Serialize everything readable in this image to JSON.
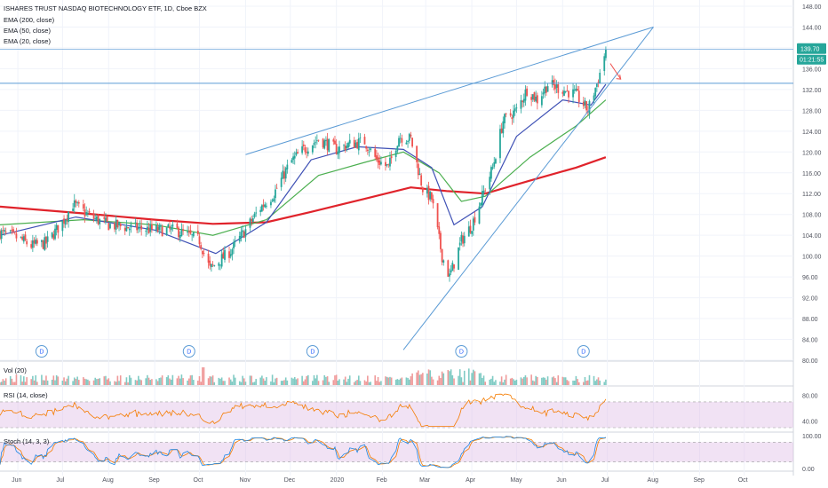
{
  "header": {
    "title": "ISHARES TRUST NASDAQ BIOTECHNOLOGY ETF, 1D, Cboe BZX",
    "indicators": [
      "EMA (200, close)",
      "EMA (50, close)",
      "EMA (20, close)"
    ]
  },
  "price_badge": {
    "value": "139.70",
    "countdown": "01:21:55"
  },
  "panes": {
    "volume": {
      "label": "Vol (20)"
    },
    "rsi": {
      "label": "RSI (14, close)",
      "ticks": [
        "80.00",
        "40.00"
      ]
    },
    "stoch": {
      "label": "Stoch (14, 3, 3)",
      "ticks": [
        "100.00",
        "0.00"
      ]
    }
  },
  "colors": {
    "up": "#26a69a",
    "down": "#ef5350",
    "ema200": "#e0232b",
    "ema50": "#4caf50",
    "ema20": "#3f51b5",
    "trendline": "#5b9bd5",
    "rsi_line": "#f57c00",
    "stoch_k": "#1e88e5",
    "stoch_d": "#f57c00",
    "band_fill": "#e1bee7"
  },
  "chart_data": {
    "type": "candlestick",
    "title": "ISHARES TRUST NASDAQ BIOTECHNOLOGY ETF, 1D, Cboe BZX",
    "x_labels": [
      "Jun",
      "Jul",
      "Aug",
      "Sep",
      "Oct",
      "Nov",
      "Dec",
      "2020",
      "Feb",
      "Mar",
      "Apr",
      "May",
      "Jun",
      "Jul",
      "Aug",
      "Sep",
      "Oct"
    ],
    "y_ticks": [
      "148.00",
      "144.00",
      "140.00",
      "136.00",
      "132.00",
      "128.00",
      "124.00",
      "120.00",
      "116.00",
      "112.00",
      "108.00",
      "104.00",
      "100.00",
      "96.00",
      "92.00",
      "88.00",
      "84.00",
      "80.00"
    ],
    "ylim": [
      80,
      148
    ],
    "dividend_markers": [
      "D",
      "D",
      "D",
      "D",
      "D"
    ],
    "price_path": [
      [
        "2019-05-20",
        104.5
      ],
      [
        "2019-06-01",
        103.5
      ],
      [
        "2019-06-10",
        102.0
      ],
      [
        "2019-06-20",
        102.5
      ],
      [
        "2019-07-01",
        106.5
      ],
      [
        "2019-07-08",
        110.0
      ],
      [
        "2019-07-20",
        107.5
      ],
      [
        "2019-08-01",
        106.0
      ],
      [
        "2019-08-15",
        105.5
      ],
      [
        "2019-09-01",
        105.0
      ],
      [
        "2019-09-15",
        105.0
      ],
      [
        "2019-10-01",
        103.0
      ],
      [
        "2019-10-08",
        97.5
      ],
      [
        "2019-10-22",
        101.0
      ],
      [
        "2019-11-01",
        105.0
      ],
      [
        "2019-11-10",
        109.0
      ],
      [
        "2019-11-20",
        112.0
      ],
      [
        "2019-12-01",
        118.0
      ],
      [
        "2019-12-10",
        120.5
      ],
      [
        "2019-12-20",
        122.5
      ],
      [
        "2020-01-01",
        120.5
      ],
      [
        "2020-01-10",
        121.5
      ],
      [
        "2020-01-20",
        122.0
      ],
      [
        "2020-01-28",
        118.5
      ],
      [
        "2020-02-05",
        117.0
      ],
      [
        "2020-02-12",
        123.0
      ],
      [
        "2020-02-20",
        122.5
      ],
      [
        "2020-02-28",
        113.0
      ],
      [
        "2020-03-05",
        111.0
      ],
      [
        "2020-03-12",
        100.0
      ],
      [
        "2020-03-17",
        96.0
      ],
      [
        "2020-03-25",
        103.0
      ],
      [
        "2020-04-01",
        106.0
      ],
      [
        "2020-04-08",
        111.5
      ],
      [
        "2020-04-15",
        117.0
      ],
      [
        "2020-04-22",
        126.0
      ],
      [
        "2020-05-01",
        128.0
      ],
      [
        "2020-05-08",
        132.0
      ],
      [
        "2020-05-15",
        130.0
      ],
      [
        "2020-05-22",
        133.0
      ],
      [
        "2020-06-01",
        132.0
      ],
      [
        "2020-06-10",
        131.0
      ],
      [
        "2020-06-18",
        128.0
      ],
      [
        "2020-06-25",
        134.0
      ],
      [
        "2020-06-30",
        139.7
      ]
    ],
    "ema200_path": [
      [
        "2019-05-20",
        109.5
      ],
      [
        "2019-07-15",
        108.2
      ],
      [
        "2019-09-01",
        107.0
      ],
      [
        "2019-10-10",
        106.2
      ],
      [
        "2019-11-15",
        106.5
      ],
      [
        "2019-12-15",
        108.5
      ],
      [
        "2020-01-20",
        111.0
      ],
      [
        "2020-02-20",
        113.2
      ],
      [
        "2020-03-15",
        112.5
      ],
      [
        "2020-04-10",
        112.0
      ],
      [
        "2020-05-10",
        114.5
      ],
      [
        "2020-06-10",
        117.0
      ],
      [
        "2020-06-30",
        119.0
      ]
    ],
    "ema50_path": [
      [
        "2019-05-20",
        106.0
      ],
      [
        "2019-07-15",
        107.0
      ],
      [
        "2019-09-01",
        106.0
      ],
      [
        "2019-10-10",
        104.0
      ],
      [
        "2019-11-15",
        107.0
      ],
      [
        "2019-12-20",
        115.5
      ],
      [
        "2020-01-20",
        118.0
      ],
      [
        "2020-02-15",
        120.0
      ],
      [
        "2020-03-10",
        116.0
      ],
      [
        "2020-03-25",
        110.5
      ],
      [
        "2020-04-10",
        111.5
      ],
      [
        "2020-05-10",
        119.0
      ],
      [
        "2020-06-10",
        125.0
      ],
      [
        "2020-06-30",
        130.0
      ]
    ],
    "ema20_path": [
      [
        "2019-05-20",
        104.0
      ],
      [
        "2019-07-10",
        107.5
      ],
      [
        "2019-09-01",
        105.0
      ],
      [
        "2019-10-12",
        100.5
      ],
      [
        "2019-11-15",
        106.5
      ],
      [
        "2019-12-15",
        118.5
      ],
      [
        "2020-01-15",
        121.0
      ],
      [
        "2020-02-15",
        120.5
      ],
      [
        "2020-03-05",
        117.0
      ],
      [
        "2020-03-20",
        106.0
      ],
      [
        "2020-04-08",
        109.5
      ],
      [
        "2020-05-01",
        123.0
      ],
      [
        "2020-06-01",
        130.0
      ],
      [
        "2020-06-20",
        129.0
      ],
      [
        "2020-06-30",
        133.0
      ]
    ],
    "trendlines": [
      [
        [
          "2019-11-01",
          119.5
        ],
        [
          "2020-08-01",
          144.0
        ]
      ],
      [
        [
          "2020-02-15",
          82.0
        ],
        [
          "2020-08-01",
          144.0
        ]
      ]
    ],
    "horizontal_lines": [
      133.2,
      139.7
    ],
    "projection_arrow": [
      [
        "2020-07-03",
        137.0
      ],
      [
        "2020-07-10",
        134.0
      ]
    ]
  }
}
